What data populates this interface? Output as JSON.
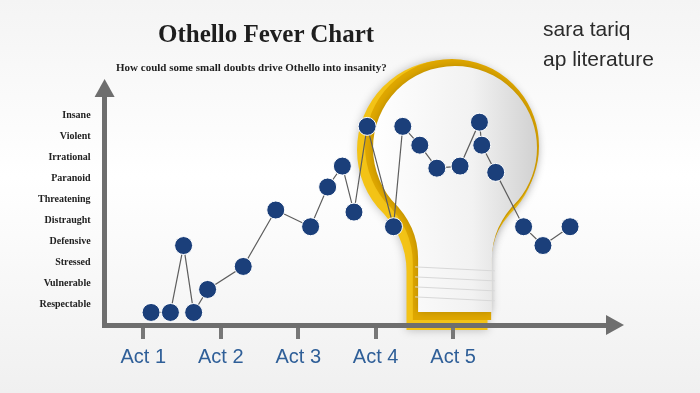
{
  "chart_data": {
    "type": "line",
    "title": "Othello Fever Chart",
    "subtitle": "How could some small doubts drive Othello into insanity?",
    "annotations": [
      "sara tariq",
      "ap literature"
    ],
    "x": [
      1.1,
      1.35,
      1.52,
      1.65,
      1.83,
      2.29,
      2.71,
      3.16,
      3.38,
      3.57,
      3.72,
      3.89,
      4.23,
      4.35,
      4.57,
      4.79,
      5.09,
      5.34,
      5.37,
      5.55,
      5.91,
      6.16,
      6.51
    ],
    "values": [
      0.6,
      0.6,
      3.8,
      0.6,
      1.7,
      2.8,
      5.5,
      4.7,
      6.6,
      7.6,
      5.4,
      9.5,
      4.7,
      9.5,
      8.6,
      7.5,
      7.6,
      9.7,
      8.6,
      7.3,
      4.7,
      3.8,
      4.7
    ],
    "color": "#1b3f7a",
    "marker": "circle",
    "xlim": [
      0.5,
      7
    ],
    "xticks": [
      {
        "value": 1,
        "label": "Act 1"
      },
      {
        "value": 2,
        "label": "Act 2"
      },
      {
        "value": 3,
        "label": "Act 3"
      },
      {
        "value": 4,
        "label": "Act 4"
      },
      {
        "value": 5,
        "label": "Act 5"
      }
    ],
    "ylim": [
      0,
      11
    ],
    "yticks": [
      {
        "value": 1,
        "label": "Respectable"
      },
      {
        "value": 2,
        "label": "Vulnerable"
      },
      {
        "value": 3,
        "label": "Stressed"
      },
      {
        "value": 4,
        "label": "Defensive"
      },
      {
        "value": 5,
        "label": "Distraught"
      },
      {
        "value": 6,
        "label": "Threatening"
      },
      {
        "value": 7,
        "label": "Paranoid"
      },
      {
        "value": 8,
        "label": "Irrational"
      },
      {
        "value": 9,
        "label": "Violent"
      },
      {
        "value": 10,
        "label": "Insane"
      }
    ],
    "grid": false
  }
}
